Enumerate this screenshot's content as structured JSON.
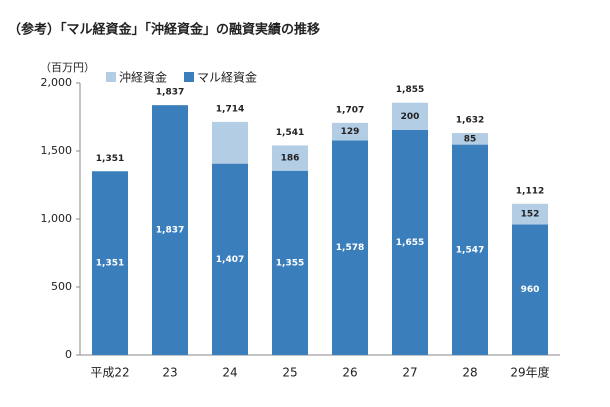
{
  "chart_data": {
    "type": "stacked_bar",
    "title": "（参考）「マル経資金」「沖経資金」の融資実績の推移",
    "y_label": "（百万円）",
    "categories": [
      "平成22",
      "23",
      "24",
      "25",
      "26",
      "27",
      "28",
      "29年度"
    ],
    "series": [
      {
        "name": "マル経資金",
        "color": "#3a7fbb",
        "values": [
          1351,
          1837,
          1407,
          1355,
          1578,
          1655,
          1547,
          960
        ],
        "value_labels": [
          "1,351",
          "1,837",
          "1,407",
          "1,355",
          "1,578",
          "1,655",
          "1,547",
          "960"
        ]
      },
      {
        "name": "沖経資金",
        "color": "#b3cde4",
        "values": [
          null,
          null,
          307,
          186,
          129,
          200,
          85,
          152
        ],
        "value_labels": [
          null,
          null,
          null,
          "186",
          "129",
          "200",
          "85",
          "152"
        ]
      }
    ],
    "totals": [
      1351,
      1837,
      1714,
      1541,
      1707,
      1855,
      1632,
      1112
    ],
    "total_labels": [
      "1,351",
      "1,837",
      "1,714",
      "1,541",
      "1,707",
      "1,855",
      "1,632",
      "1,112"
    ],
    "ylim": [
      0,
      2000
    ],
    "yticks": [
      0,
      500,
      {
        "value": 1000,
        "label": "1,000"
      },
      {
        "value": 1500,
        "label": "1,500"
      },
      {
        "value": 2000,
        "label": "2,000"
      }
    ],
    "legend": "top-left"
  }
}
